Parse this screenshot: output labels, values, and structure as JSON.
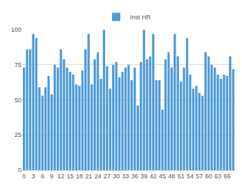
{
  "chart_data": {
    "type": "bar",
    "categories": [
      "0",
      null,
      null,
      "3",
      null,
      null,
      "6",
      null,
      null,
      "9",
      null,
      null,
      "12",
      null,
      null,
      "15",
      null,
      null,
      "18",
      null,
      null,
      "21",
      null,
      null,
      "24",
      null,
      null,
      "27",
      null,
      null,
      "30",
      null,
      null,
      "33",
      null,
      null,
      "36",
      null,
      null,
      "39",
      null,
      null,
      "42",
      null,
      null,
      "45",
      null,
      null,
      "48",
      null,
      null,
      "51",
      null,
      null,
      "54",
      null,
      null,
      "57",
      null,
      null,
      "60",
      null,
      null,
      "63",
      null,
      null,
      "66",
      null,
      null
    ],
    "series": [
      {
        "name": "Inst HR",
        "color": "#4f9bd9",
        "values": [
          73,
          86,
          86,
          97,
          94,
          59,
          53,
          59,
          67,
          54,
          75,
          73,
          86,
          79,
          73,
          70,
          68,
          61,
          60,
          71,
          86,
          97,
          61,
          79,
          84,
          65,
          100,
          74,
          58,
          75,
          77,
          66,
          70,
          73,
          75,
          64,
          73,
          46,
          77,
          100,
          79,
          81,
          97,
          64,
          64,
          43,
          79,
          84,
          73,
          97,
          81,
          63,
          73,
          94,
          68,
          58,
          60,
          55,
          53,
          84,
          81,
          75,
          73,
          68,
          65,
          68,
          67,
          81,
          72
        ]
      }
    ],
    "ylim": [
      0,
      100
    ],
    "yticks": [
      0,
      25,
      50,
      75,
      100
    ],
    "grid": true,
    "legend": "top"
  }
}
